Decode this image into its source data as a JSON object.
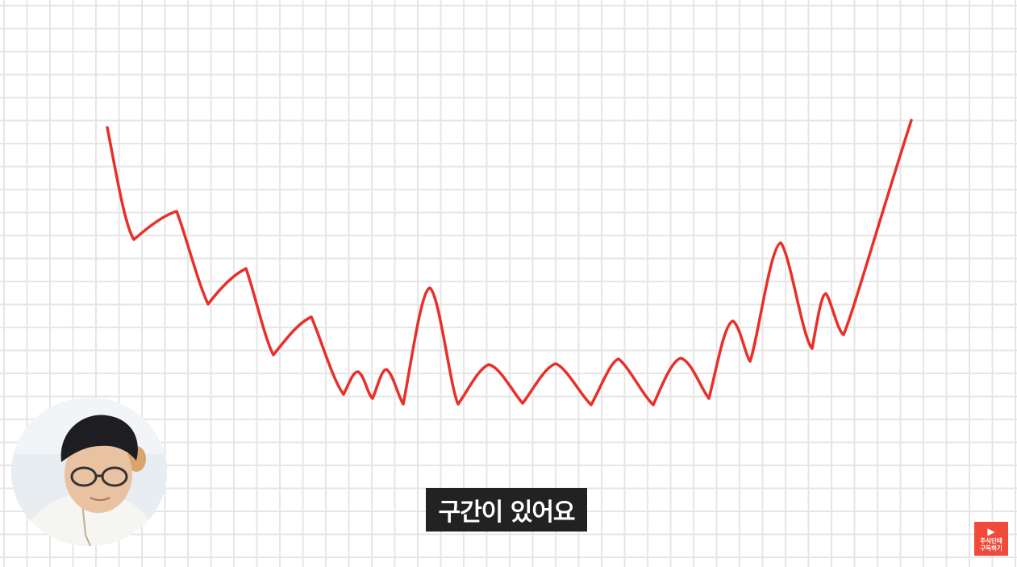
{
  "subtitle": "구간이 있어요",
  "badge": {
    "icon": "play-icon",
    "line1": "주식단테",
    "line2": "구독하기"
  },
  "colors": {
    "line": "#e8302a",
    "grid": "#e6e6e6",
    "subtitle_bg": "#222222",
    "badge_bg": "#f04b3a"
  }
}
